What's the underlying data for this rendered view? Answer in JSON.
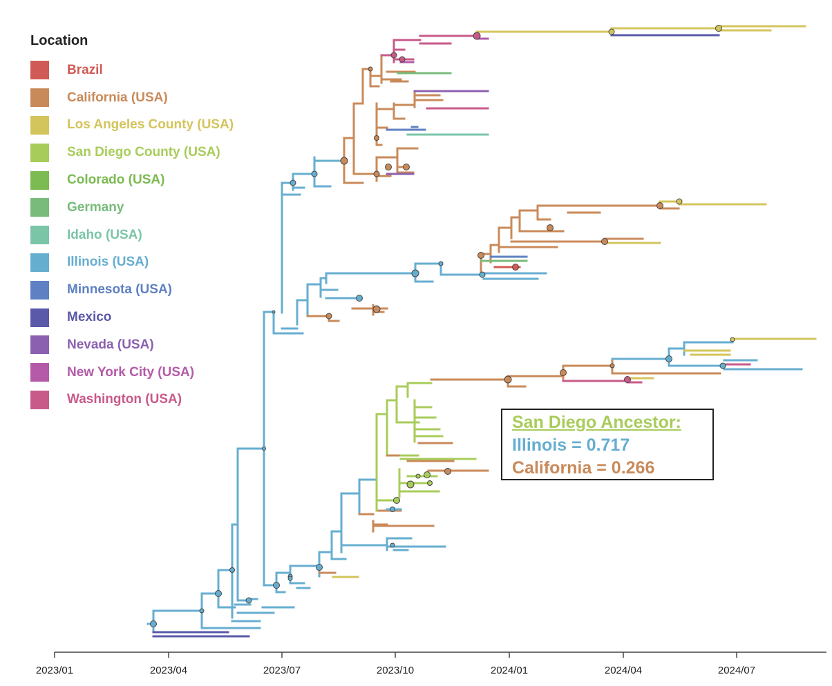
{
  "legend": {
    "title": "Location",
    "items": [
      {
        "label": "Brazil",
        "color": "#d05a55"
      },
      {
        "label": "California (USA)",
        "color": "#c98a5a"
      },
      {
        "label": "Los Angeles County (USA)",
        "color": "#d4c45c"
      },
      {
        "label": "San Diego County (USA)",
        "color": "#a8cc5a"
      },
      {
        "label": "Colorado (USA)",
        "color": "#7cba52"
      },
      {
        "label": "Germany",
        "color": "#78bb7a"
      },
      {
        "label": "Idaho (USA)",
        "color": "#7ac5a8"
      },
      {
        "label": "Illinois (USA)",
        "color": "#66aed0"
      },
      {
        "label": "Minnesota (USA)",
        "color": "#5f80c2"
      },
      {
        "label": "Mexico",
        "color": "#5a58a8"
      },
      {
        "label": "Nevada (USA)",
        "color": "#8c60b0"
      },
      {
        "label": "New York City (USA)",
        "color": "#b45aa8"
      },
      {
        "label": "Washington (USA)",
        "color": "#c85a8a"
      }
    ]
  },
  "ancestor_box": {
    "title": "San Diego Ancestor:",
    "line1": "Illinois = 0.717",
    "line2": "California = 0.266",
    "title_color": "#a8cc5a",
    "line1_color": "#66aed0",
    "line2_color": "#c98a5a"
  },
  "axis": {
    "ticks": [
      "2023/01",
      "2023/04",
      "2023/07",
      "2023/10",
      "2024/01",
      "2024/04",
      "2024/07"
    ]
  }
}
